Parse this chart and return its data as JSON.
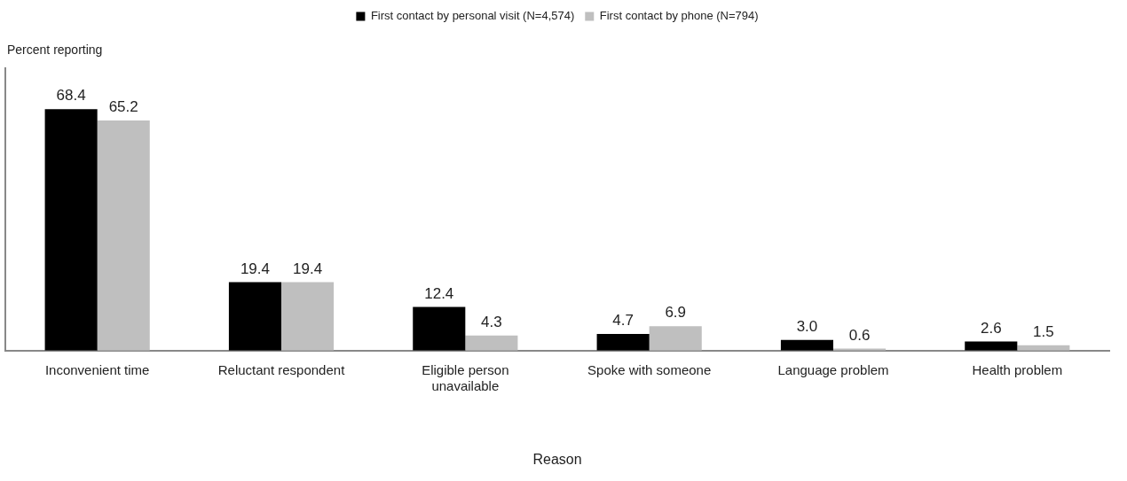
{
  "chart_data": {
    "type": "bar",
    "xlabel": "Reason",
    "ylabel": "Percent reporting",
    "categories": [
      "Inconvenient time",
      "Reluctant respondent",
      "Eligible person unavailable",
      "Spoke with someone",
      "Language problem",
      "Health problem"
    ],
    "series": [
      {
        "name": "First contact by personal visit (N=4,574)",
        "color": "#000000",
        "values": [
          68.4,
          19.4,
          12.4,
          4.7,
          3.0,
          2.6
        ],
        "value_labels": [
          "68.4",
          "19.4",
          "12.4",
          "4.7",
          "3.0",
          "2.6"
        ]
      },
      {
        "name": "First contact by phone (N=794)",
        "color": "#bfbfbf",
        "values": [
          65.2,
          19.4,
          4.3,
          6.9,
          0.6,
          1.5
        ],
        "value_labels": [
          "65.2",
          "19.4",
          "4.3",
          "6.9",
          "0.6",
          "1.5"
        ]
      }
    ],
    "ylim": [
      0,
      80
    ],
    "tick_labels": "x",
    "legend": "top",
    "grid": false
  }
}
